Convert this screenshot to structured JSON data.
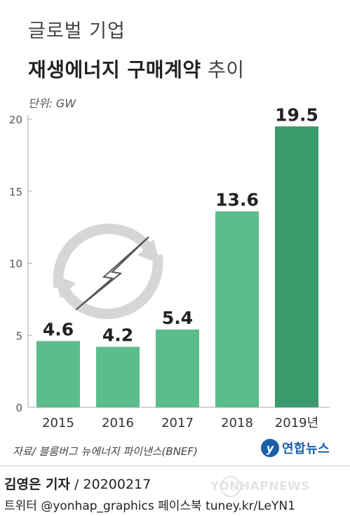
{
  "header": {
    "title_line1": "글로벌 기업",
    "title_line2_bold": "재생에너지 구매계약",
    "title_line2_suffix": " 추이",
    "unit": "단위: GW"
  },
  "chart_data": {
    "type": "bar",
    "categories": [
      "2015",
      "2016",
      "2017",
      "2018",
      "2019년"
    ],
    "values": [
      4.6,
      4.2,
      5.4,
      13.6,
      19.5
    ],
    "value_labels": [
      "4.6",
      "4.2",
      "5.4",
      "13.6",
      "19.5"
    ],
    "y_ticks": [
      "0",
      "5",
      "10",
      "15",
      "20"
    ],
    "ylim": [
      0,
      20
    ],
    "grid": false,
    "colors": {
      "bar": "#5cbd8a",
      "highlight": "#3a9a6b",
      "axis": "#aaaaaa",
      "icon": "#d6d6d6"
    },
    "highlight_index": 4
  },
  "footer": {
    "source": "자료/ 블룸버그 뉴에너지 파이낸스(BNEF)",
    "logo_text": "연합뉴스",
    "byline_name": "김영은 기자",
    "byline_date": " / 20200217",
    "social": "트위터 @yonhap_graphics  페이스북 tuney.kr/LeYN1",
    "watermark": "YONHAPNEWS"
  }
}
